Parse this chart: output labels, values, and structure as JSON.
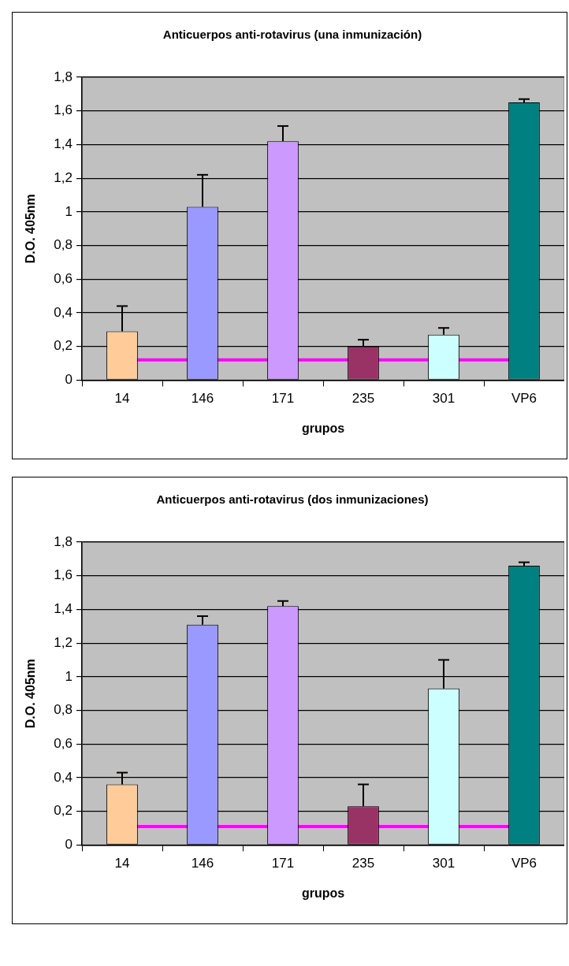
{
  "chart_data": [
    {
      "type": "bar",
      "title": "Anticuerpos anti-rotavirus (una inmunización)",
      "xlabel": "grupos",
      "ylabel": "D.O. 405nm",
      "categories": [
        "14",
        "146",
        "171",
        "235",
        "301",
        "VP6"
      ],
      "values": [
        0.29,
        1.03,
        1.42,
        0.2,
        0.27,
        1.65
      ],
      "colors": [
        "#ffcc99",
        "#9999ff",
        "#cc99ff",
        "#993366",
        "#ccffff",
        "#008080"
      ],
      "errors": [
        [
          0.29,
          0.44
        ],
        [
          1.03,
          1.22
        ],
        [
          1.42,
          1.51
        ],
        [
          0.2,
          0.24
        ],
        [
          0.27,
          0.31
        ],
        [
          1.65,
          1.67
        ]
      ],
      "ylim": [
        0,
        1.8
      ],
      "yticks": [
        {
          "value": 0,
          "label": "0"
        },
        {
          "value": 0.2,
          "label": "0,2"
        },
        {
          "value": 0.4,
          "label": "0,4"
        },
        {
          "value": 0.6,
          "label": "0,6"
        },
        {
          "value": 0.8,
          "label": "0,8"
        },
        {
          "value": 1,
          "label": "1"
        },
        {
          "value": 1.2,
          "label": "1,2"
        },
        {
          "value": 1.4,
          "label": "1,4"
        },
        {
          "value": 1.6,
          "label": "1,6"
        },
        {
          "value": 1.8,
          "label": "1,8"
        }
      ],
      "grid": "y",
      "ref_lines": [
        {
          "axis": "y",
          "value": 0.12,
          "color": "#ff00ff"
        }
      ]
    },
    {
      "type": "bar",
      "title": "Anticuerpos anti-rotavirus (dos inmunizaciones)",
      "xlabel": "grupos",
      "ylabel": "D.O. 405nm",
      "categories": [
        "14",
        "146",
        "171",
        "235",
        "301",
        "VP6"
      ],
      "values": [
        0.36,
        1.31,
        1.42,
        0.23,
        0.93,
        1.66
      ],
      "colors": [
        "#ffcc99",
        "#9999ff",
        "#cc99ff",
        "#993366",
        "#ccffff",
        "#008080"
      ],
      "errors": [
        [
          0.36,
          0.43
        ],
        [
          1.31,
          1.36
        ],
        [
          1.42,
          1.45
        ],
        [
          0.23,
          0.36
        ],
        [
          0.93,
          1.1
        ],
        [
          1.66,
          1.68
        ]
      ],
      "ylim": [
        0,
        1.8
      ],
      "yticks": [
        {
          "value": 0,
          "label": "0"
        },
        {
          "value": 0.2,
          "label": "0,2"
        },
        {
          "value": 0.4,
          "label": "0,4"
        },
        {
          "value": 0.6,
          "label": "0,6"
        },
        {
          "value": 0.8,
          "label": "0,8"
        },
        {
          "value": 1,
          "label": "1"
        },
        {
          "value": 1.2,
          "label": "1,2"
        },
        {
          "value": 1.4,
          "label": "1,4"
        },
        {
          "value": 1.6,
          "label": "1,6"
        },
        {
          "value": 1.8,
          "label": "1,8"
        }
      ],
      "grid": "y",
      "ref_lines": [
        {
          "axis": "y",
          "value": 0.11,
          "color": "#ff00ff"
        }
      ]
    }
  ]
}
